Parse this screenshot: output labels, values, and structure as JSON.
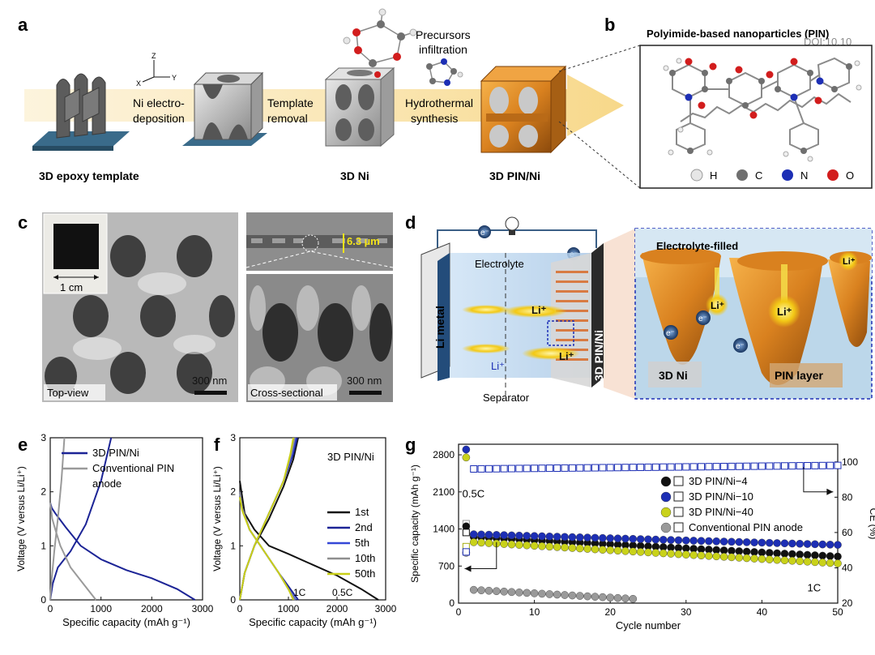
{
  "watermark": "DOI:10.10",
  "panels": {
    "a": {
      "letter": "a",
      "axis": {
        "z": "Z",
        "x": "X",
        "y": "Y"
      },
      "steps": [
        "Ni electro-",
        "deposition",
        "Template",
        "removal",
        "Hydrothermal",
        "synthesis"
      ],
      "precursors": [
        "Precursors",
        "infiltration"
      ],
      "labels": [
        "3D epoxy template",
        "3D Ni",
        "3D PIN/Ni"
      ]
    },
    "b": {
      "letter": "b",
      "title": "Polyimide-based nanoparticles (PIN)",
      "legend": [
        {
          "label": "H",
          "color": "#e6e6e6"
        },
        {
          "label": "C",
          "color": "#6f6f6f"
        },
        {
          "label": "N",
          "color": "#1d2fb5"
        },
        {
          "label": "O",
          "color": "#d21d1d"
        }
      ]
    },
    "c": {
      "letter": "c",
      "scale_inset": "1 cm",
      "thickness": "6.3 µm",
      "top_label": "Top-view",
      "cross_label": "Cross-sectional",
      "scalebar": "300 nm"
    },
    "d": {
      "letter": "d",
      "electron": "e⁻",
      "electrolyte": "Electrolyte",
      "li_metal": "Li metal",
      "li_ion": "Li⁺",
      "separator": "Separator",
      "electrode": "3D PIN/Ni",
      "zoom_title": "Electrolyte-filled",
      "zoom_ni": "3D Ni",
      "zoom_pin": "PIN layer"
    }
  },
  "chart_data": [
    {
      "id": "e",
      "type": "line",
      "xlabel": "Specific capacity (mAh g⁻¹)",
      "ylabel": "Voltage (V versus Li/Li⁺)",
      "xlim": [
        0,
        3000
      ],
      "ylim": [
        0,
        3
      ],
      "xticks": [
        0,
        1000,
        2000,
        3000
      ],
      "yticks": [
        0,
        1,
        2,
        3
      ],
      "legend": [
        "3D PIN/Ni",
        "Conventional PIN",
        "anode"
      ],
      "series": [
        {
          "name": "3D PIN/Ni",
          "color": "#1c2496",
          "x": [
            0,
            30,
            100,
            300,
            600,
            1000,
            1500,
            2000,
            2500,
            2850
          ],
          "y": [
            1.8,
            1.7,
            1.6,
            1.35,
            1.0,
            0.75,
            0.55,
            0.4,
            0.2,
            0.0
          ]
        },
        {
          "name": "3D PIN/Ni",
          "color": "#1c2496",
          "x": [
            0,
            50,
            150,
            400,
            700,
            1000,
            1200
          ],
          "y": [
            0.0,
            0.3,
            0.6,
            0.9,
            1.4,
            2.2,
            3.0
          ]
        },
        {
          "name": "Conventional PIN anode",
          "color": "#9a9a9a",
          "x": [
            0,
            40,
            100,
            200,
            400,
            650,
            900
          ],
          "y": [
            1.8,
            1.5,
            1.3,
            1.0,
            0.6,
            0.3,
            0.0
          ]
        },
        {
          "name": "Conventional PIN anode",
          "color": "#9a9a9a",
          "x": [
            0,
            30,
            80,
            150,
            220,
            280
          ],
          "y": [
            0.0,
            0.4,
            0.9,
            1.5,
            2.2,
            3.0
          ]
        }
      ]
    },
    {
      "id": "f",
      "type": "line",
      "title": "3D PIN/Ni",
      "xlabel": "Specific capacity (mAh g⁻¹)",
      "ylabel": "Voltage (V versus Li/Li⁺)",
      "xlim": [
        0,
        3000
      ],
      "ylim": [
        0,
        3
      ],
      "xticks": [
        0,
        1000,
        2000,
        3000
      ],
      "yticks": [
        0,
        1,
        2,
        3
      ],
      "annotations": [
        "1C",
        "0.5C"
      ],
      "series": [
        {
          "name": "1st",
          "color": "#111111",
          "x": [
            0,
            100,
            300,
            600,
            1000,
            1500,
            2000,
            2500,
            2850
          ],
          "y": [
            2.2,
            1.6,
            1.3,
            1.0,
            0.85,
            0.65,
            0.45,
            0.2,
            0.0
          ]
        },
        {
          "name": "1st",
          "color": "#111111",
          "x": [
            0,
            100,
            300,
            600,
            900,
            1100,
            1200
          ],
          "y": [
            0.0,
            0.5,
            1.0,
            1.5,
            2.1,
            2.6,
            3.0
          ]
        },
        {
          "name": "2nd",
          "color": "#1c2496",
          "x": [
            0,
            50,
            200,
            500,
            800,
            1000,
            1200
          ],
          "y": [
            2.0,
            1.7,
            1.3,
            0.9,
            0.5,
            0.25,
            0.0
          ]
        },
        {
          "name": "2nd",
          "color": "#1c2496",
          "x": [
            0,
            100,
            300,
            600,
            900,
            1100,
            1180
          ],
          "y": [
            0.0,
            0.5,
            1.0,
            1.6,
            2.2,
            2.7,
            3.0
          ]
        },
        {
          "name": "5th",
          "color": "#3447d6",
          "x": [
            0,
            50,
            200,
            500,
            800,
            1000,
            1150
          ],
          "y": [
            2.0,
            1.7,
            1.3,
            0.9,
            0.5,
            0.2,
            0.0
          ]
        },
        {
          "name": "5th",
          "color": "#3447d6",
          "x": [
            0,
            100,
            300,
            600,
            900,
            1080,
            1150
          ],
          "y": [
            0.0,
            0.5,
            1.0,
            1.6,
            2.2,
            2.7,
            3.0
          ]
        },
        {
          "name": "10th",
          "color": "#8e8e8e",
          "x": [
            0,
            50,
            200,
            500,
            800,
            1000,
            1130
          ],
          "y": [
            2.0,
            1.7,
            1.3,
            0.9,
            0.5,
            0.2,
            0.0
          ]
        },
        {
          "name": "10th",
          "color": "#8e8e8e",
          "x": [
            0,
            100,
            300,
            600,
            900,
            1060,
            1130
          ],
          "y": [
            0.0,
            0.5,
            1.0,
            1.6,
            2.2,
            2.7,
            3.0
          ]
        },
        {
          "name": "50th",
          "color": "#c9cf17",
          "x": [
            0,
            50,
            200,
            500,
            800,
            1000,
            1100
          ],
          "y": [
            1.9,
            1.65,
            1.3,
            0.9,
            0.5,
            0.2,
            0.0
          ]
        },
        {
          "name": "50th",
          "color": "#c9cf17",
          "x": [
            0,
            100,
            300,
            600,
            900,
            1040,
            1100
          ],
          "y": [
            0.0,
            0.5,
            1.0,
            1.6,
            2.2,
            2.7,
            3.0
          ]
        }
      ],
      "legend": [
        "1st",
        "2nd",
        "5th",
        "10th",
        "50th"
      ]
    },
    {
      "id": "g",
      "type": "scatter",
      "xlabel": "Cycle number",
      "ylabel": "Specific capacity (mAh g⁻¹)",
      "y2label": "CE (%)",
      "xlim": [
        0,
        50
      ],
      "ylim": [
        0,
        3000
      ],
      "y2lim": [
        20,
        110
      ],
      "xticks": [
        0,
        10,
        20,
        30,
        40,
        50
      ],
      "yticks": [
        0,
        700,
        1400,
        2100,
        2800
      ],
      "y2ticks": [
        20,
        40,
        60,
        80,
        100
      ],
      "annotations": [
        "0.5C",
        "1C"
      ],
      "legend": [
        "3D PIN/Ni−4",
        "3D PIN/Ni−10",
        "3D PIN/Ni−40",
        "Conventional PIN anode"
      ],
      "series": [
        {
          "name": "3D PIN/Ni−4",
          "color": "#111111",
          "cycles": [
            1,
            2,
            50
          ],
          "capacity": [
            1450,
            1250,
            880
          ],
          "ce": [
            60,
            98,
            99.5
          ]
        },
        {
          "name": "3D PIN/Ni−10",
          "color": "#1d2fb5",
          "cycles": [
            1,
            2,
            50
          ],
          "capacity": [
            2900,
            1300,
            1100
          ],
          "ce": [
            49,
            96,
            98
          ]
        },
        {
          "name": "3D PIN/Ni−40",
          "color": "#c9d21a",
          "cycles": [
            1,
            2,
            50
          ],
          "capacity": [
            2750,
            1150,
            750
          ],
          "ce": [
            52,
            97,
            99
          ]
        },
        {
          "name": "Conventional PIN anode",
          "color": "#9a9a9a",
          "cycles": [
            1,
            2,
            23
          ],
          "capacity": [
            950,
            250,
            80
          ],
          "ce": [
            65,
            90,
            99
          ]
        }
      ]
    }
  ]
}
